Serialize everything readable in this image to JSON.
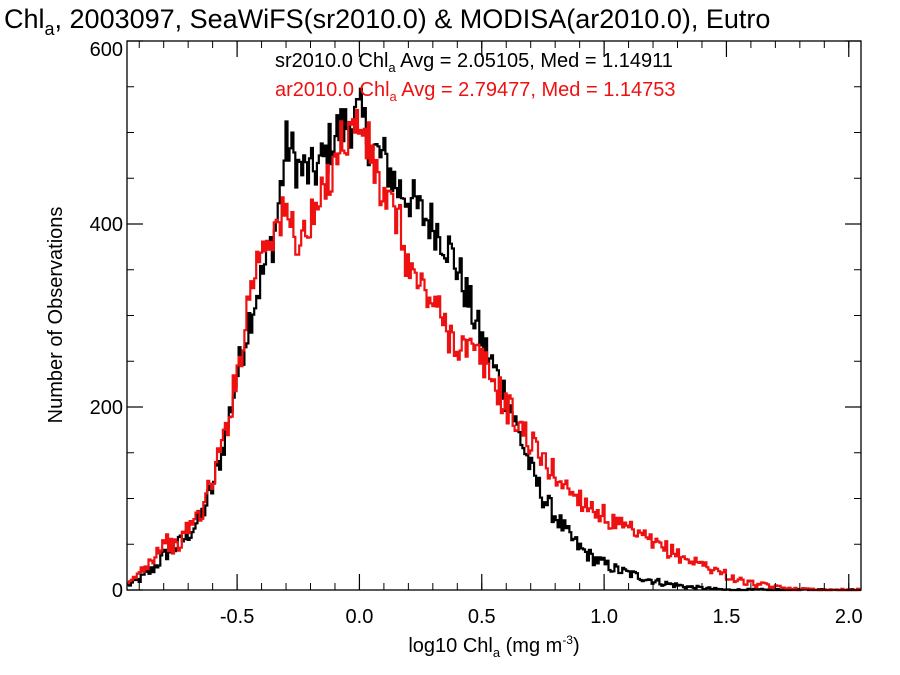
{
  "chart_data": {
    "type": "line",
    "title": {
      "pre": "Chl",
      "sub": "a",
      "post": ", 2003097, SeaWiFS(sr2010.0) & MODISA(ar2010.0), Eutro"
    },
    "xlabel": {
      "pre": "log10 Chl",
      "sub": "a",
      "mid": " (mg m",
      "sup": "-3",
      "post": ")"
    },
    "ylabel": "Number of Observations",
    "xlim": [
      -0.95,
      2.05
    ],
    "ylim": [
      0,
      600
    ],
    "x_ticks": [
      "-0.5",
      "0.0",
      "0.5",
      "1.0",
      "1.5",
      "2.0"
    ],
    "x_tick_values": [
      -0.5,
      0.0,
      0.5,
      1.0,
      1.5,
      2.0
    ],
    "y_ticks": [
      "0",
      "200",
      "400",
      "600"
    ],
    "y_tick_values": [
      0,
      200,
      400,
      600
    ],
    "grid": false,
    "legend_position": "top-center",
    "annotations": [
      {
        "series": "sr2010.0",
        "pre": "sr2010.0 Chl",
        "sub": "a",
        "post": " Avg = 2.05105, Med = 1.14911",
        "color": "#000000"
      },
      {
        "series": "ar2010.0",
        "pre": "ar2010.0 Chl",
        "sub": "a",
        "post": " Avg = 2.79477, Med = 1.14753",
        "color": "#ee1111"
      }
    ],
    "x": [
      -0.95,
      -0.9,
      -0.85,
      -0.8,
      -0.75,
      -0.7,
      -0.65,
      -0.6,
      -0.55,
      -0.5,
      -0.45,
      -0.4,
      -0.35,
      -0.3,
      -0.25,
      -0.2,
      -0.15,
      -0.1,
      -0.05,
      0.0,
      0.05,
      0.1,
      0.15,
      0.2,
      0.25,
      0.3,
      0.35,
      0.4,
      0.45,
      0.5,
      0.55,
      0.6,
      0.65,
      0.7,
      0.75,
      0.8,
      0.85,
      0.9,
      0.95,
      1.0,
      1.05,
      1.1,
      1.15,
      1.2,
      1.25,
      1.3,
      1.35,
      1.4,
      1.45,
      1.5,
      1.55,
      1.6,
      1.65,
      1.7,
      1.75,
      1.8,
      1.85,
      1.9,
      1.95,
      2.0,
      2.05
    ],
    "series": [
      {
        "name": "sr2010.0",
        "color": "#000000",
        "values": [
          5,
          12,
          22,
          38,
          48,
          62,
          80,
          115,
          170,
          240,
          300,
          345,
          390,
          490,
          460,
          455,
          470,
          500,
          510,
          520,
          480,
          470,
          440,
          430,
          410,
          400,
          380,
          350,
          310,
          270,
          240,
          210,
          170,
          130,
          100,
          80,
          60,
          45,
          35,
          28,
          22,
          18,
          14,
          10,
          7,
          5,
          3,
          2,
          1,
          0,
          0,
          0,
          0,
          0,
          0,
          0,
          0,
          0,
          0,
          0,
          0
        ]
      },
      {
        "name": "ar2010.0",
        "color": "#ee1111",
        "values": [
          5,
          20,
          35,
          55,
          45,
          70,
          85,
          125,
          175,
          240,
          330,
          380,
          395,
          410,
          380,
          400,
          430,
          480,
          500,
          510,
          470,
          420,
          410,
          350,
          330,
          315,
          285,
          270,
          260,
          250,
          225,
          200,
          180,
          160,
          140,
          125,
          110,
          100,
          90,
          80,
          70,
          65,
          58,
          50,
          45,
          38,
          32,
          28,
          22,
          16,
          10,
          7,
          5,
          3,
          2,
          1,
          1,
          0,
          0,
          0,
          0
        ]
      }
    ]
  }
}
